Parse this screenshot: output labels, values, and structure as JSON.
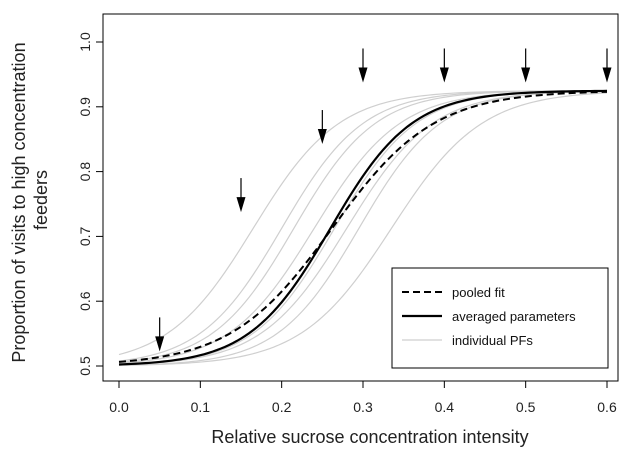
{
  "chart_data": {
    "type": "line",
    "xlabel": "Relative sucrose concentration intensity",
    "ylabel_lines": [
      "Proportion of visits to high concentration",
      "feeders"
    ],
    "xlim": [
      0.0,
      0.6
    ],
    "ylim": [
      0.5,
      1.0
    ],
    "x_ticks": [
      "0.0",
      "0.1",
      "0.2",
      "0.3",
      "0.4",
      "0.5",
      "0.6"
    ],
    "y_ticks": [
      "0.5",
      "0.6",
      "0.7",
      "0.8",
      "0.9",
      "1.0"
    ],
    "grid": false,
    "legend_position": "bottom-right",
    "legend": {
      "pooled": "pooled fit",
      "averaged": "averaged parameters",
      "individual": "individual PFs"
    },
    "asymptote": 0.925,
    "colors": {
      "individual": "#cfcfcf",
      "main": "#000000"
    },
    "pooled_fit": {
      "x0": 0.262,
      "k": 16
    },
    "averaged_parameters": {
      "x0": 0.26,
      "k": 20
    },
    "individual_pfs": [
      {
        "x0": 0.165,
        "k": 19
      },
      {
        "x0": 0.2,
        "k": 20
      },
      {
        "x0": 0.215,
        "k": 20
      },
      {
        "x0": 0.24,
        "k": 19
      },
      {
        "x0": 0.265,
        "k": 20
      },
      {
        "x0": 0.28,
        "k": 19
      },
      {
        "x0": 0.295,
        "k": 20
      },
      {
        "x0": 0.335,
        "k": 18
      }
    ],
    "arrows_x": [
      0.05,
      0.15,
      0.25,
      0.3,
      0.4,
      0.5,
      0.6
    ],
    "arrows_y_top": [
      0.575,
      0.79,
      0.895,
      0.99,
      0.99,
      0.99,
      0.99
    ]
  }
}
